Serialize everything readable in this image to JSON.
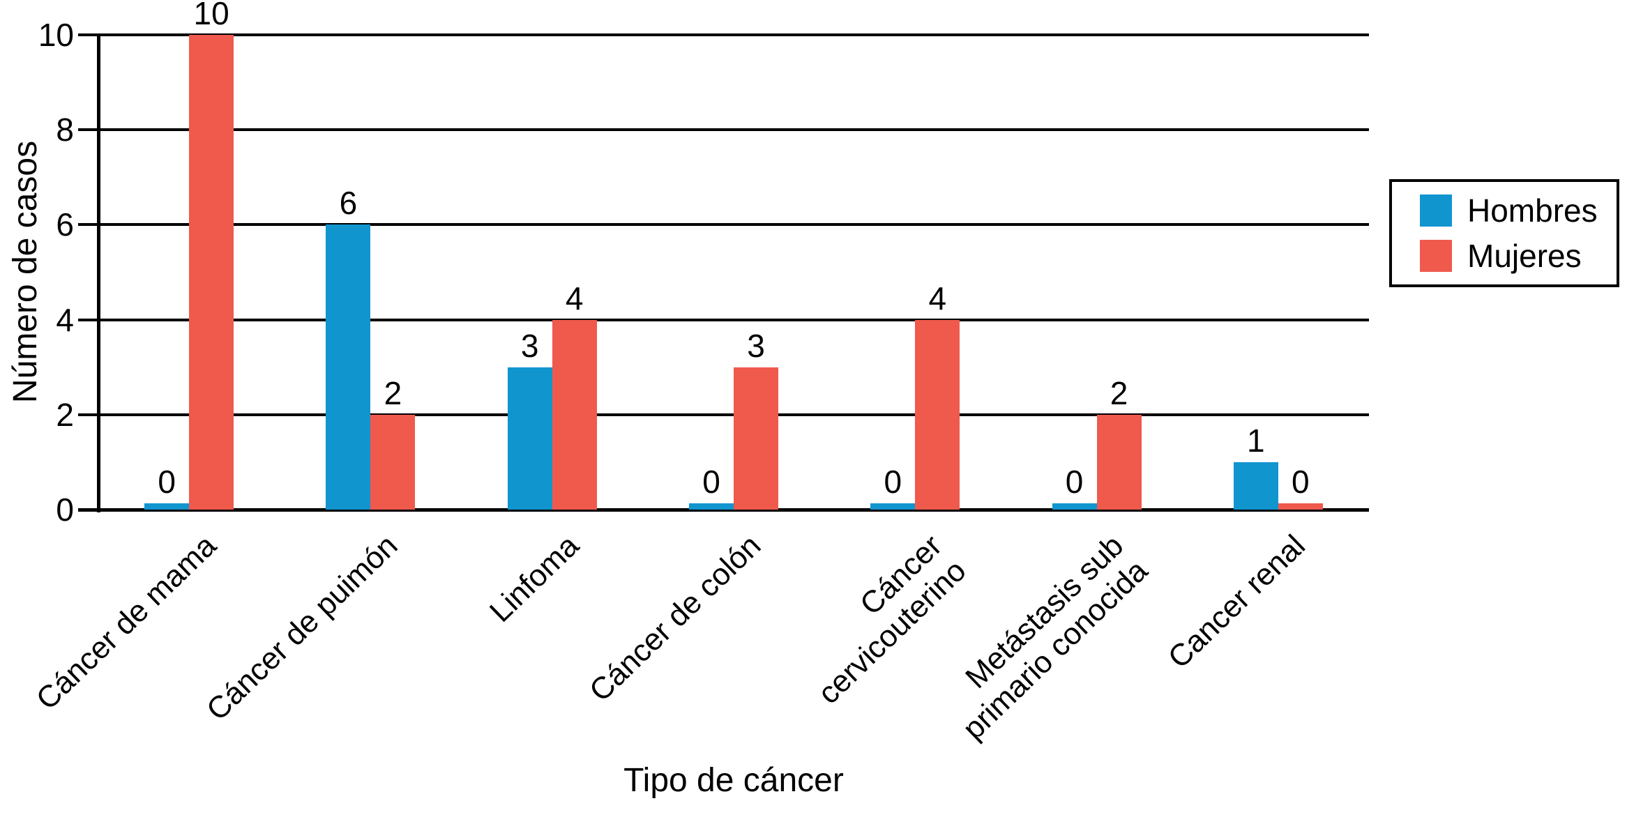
{
  "chart_data": {
    "type": "bar",
    "title": "",
    "xlabel": "Tipo de cáncer",
    "ylabel": "Número de casos",
    "categories": [
      "Cáncer de mama",
      "Cáncer de puimón",
      "Linfoma",
      "Cáncer de colón",
      "Cáncer\ncervicouterino",
      "Metástasis sub\nprimario conocida",
      "Cancer renal"
    ],
    "series": [
      {
        "name": "Hombres",
        "color": "#1195cf",
        "values": [
          0,
          6,
          3,
          0,
          0,
          0,
          1
        ]
      },
      {
        "name": "Mujeres",
        "color": "#ef5a4d",
        "values": [
          10,
          2,
          4,
          3,
          4,
          2,
          0
        ]
      }
    ],
    "ylim": [
      0,
      10
    ],
    "yticks": [
      0,
      2,
      4,
      6,
      8,
      10
    ],
    "grid": true,
    "bar_value_labels": true,
    "legend_position": "right"
  },
  "colors": {
    "axis": "#000000",
    "text": "#000000",
    "background": "#ffffff"
  }
}
